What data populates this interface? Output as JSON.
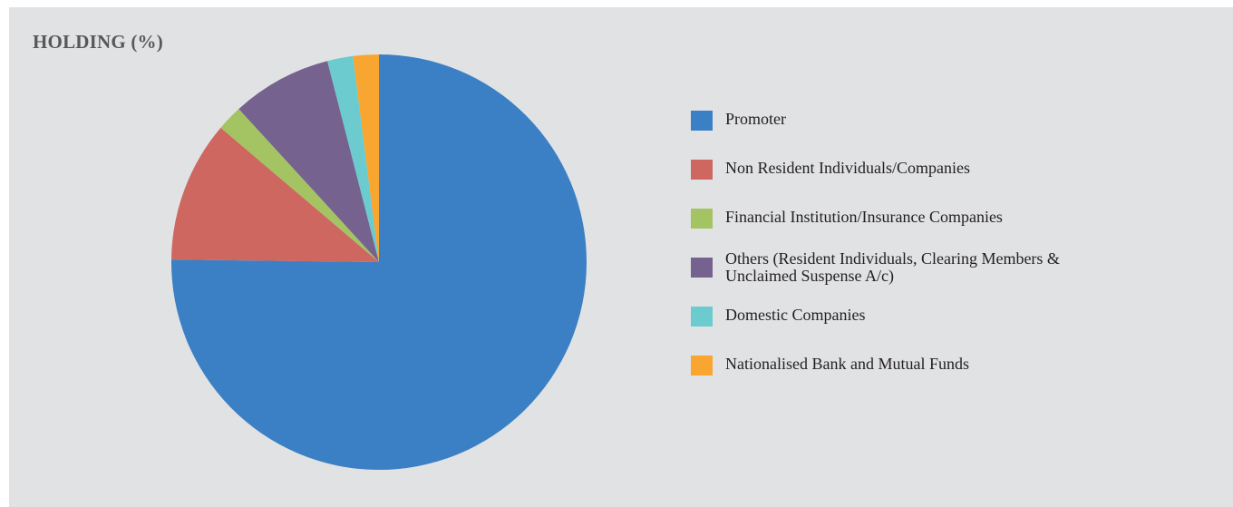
{
  "chart_data": {
    "type": "pie",
    "title": "HOLDING (%)",
    "legend_position": "right",
    "slices": [
      {
        "label": "Promoter",
        "value": 75.2,
        "color": "#3b80c4"
      },
      {
        "label": "Non Resident Individuals/Companies",
        "value": 11.0,
        "color": "#cd6760"
      },
      {
        "label": "Financial Institution/Insurance Companies",
        "value": 2.0,
        "color": "#a4c363"
      },
      {
        "label": "Others (Resident Individuals, Clearing Members & Unclaimed Suspense A/c)",
        "label_lines": [
          "Others (Resident Individuals, Clearing Members &",
          "Unclaimed Suspense A/c)"
        ],
        "value": 7.8,
        "color": "#76628f"
      },
      {
        "label": "Domestic Companies",
        "value": 2.0,
        "color": "#6ccbcf"
      },
      {
        "label": "Nationalised Bank and Mutual Funds",
        "value": 2.0,
        "color": "#f8a630"
      }
    ]
  }
}
